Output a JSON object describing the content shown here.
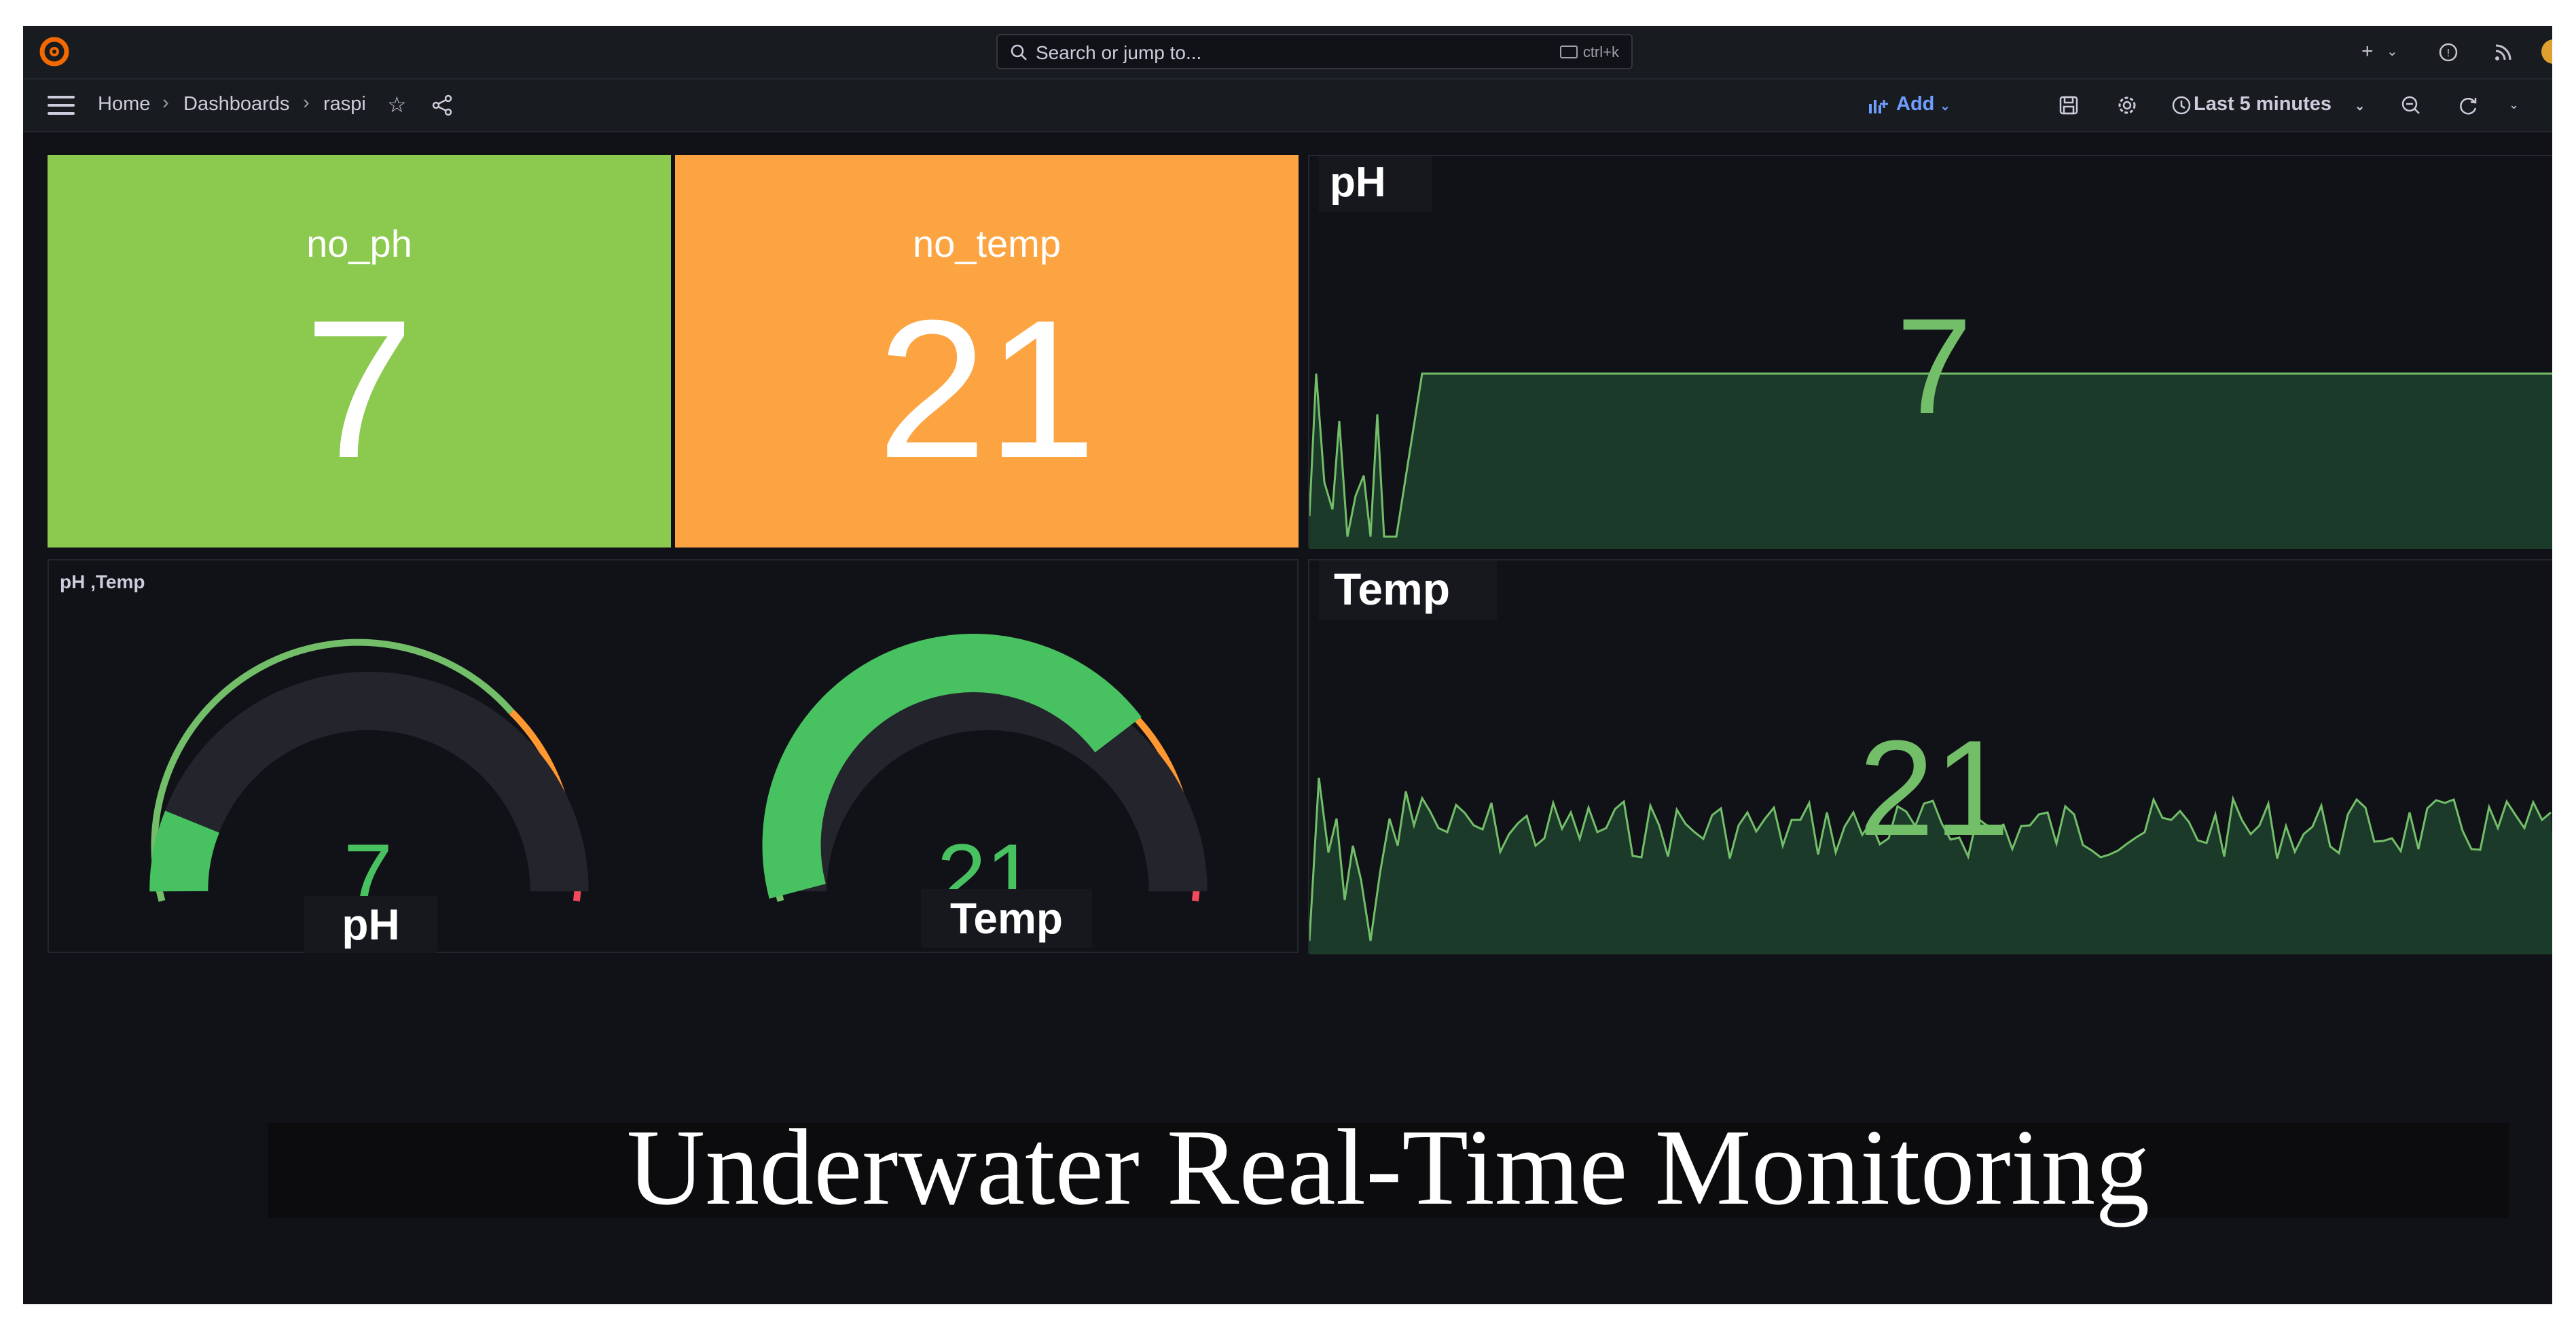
{
  "topbar": {
    "search_placeholder": "Search or jump to...",
    "search_shortcut": "ctrl+k",
    "icons": [
      "grafana-logo-icon",
      "plus-icon",
      "help-icon",
      "rss-icon",
      "avatar"
    ]
  },
  "navbar": {
    "breadcrumb": [
      "Home",
      "Dashboards",
      "raspi"
    ],
    "add_label": "Add",
    "time_range": "Last 5 minutes",
    "icons": [
      "menu-icon",
      "star-icon",
      "share-icon",
      "save-icon",
      "settings-icon",
      "clock-icon",
      "zoom-out-icon",
      "refresh-icon"
    ]
  },
  "panels": {
    "no_ph": {
      "title": "no_ph",
      "value": "7",
      "color": "#8bc94f"
    },
    "no_temp": {
      "title": "no_temp",
      "value": "21",
      "color": "#fda442"
    },
    "ph_graph": {
      "label": "pH",
      "value": "7"
    },
    "temp_graph": {
      "label": "Temp",
      "value": "21"
    },
    "gauges": {
      "title": "pH ,Temp",
      "ph": {
        "value": "7",
        "label": "pH",
        "fill_fraction": 0.12
      },
      "temp": {
        "value": "21",
        "label": "Temp",
        "fill_fraction": 0.7
      }
    }
  },
  "colors": {
    "green": "#73bf69",
    "green_dark": "#1c3a2a",
    "orange": "#ff9830",
    "red": "#f2495c",
    "background": "#111217"
  },
  "caption": "Underwater Real-Time Monitoring"
}
